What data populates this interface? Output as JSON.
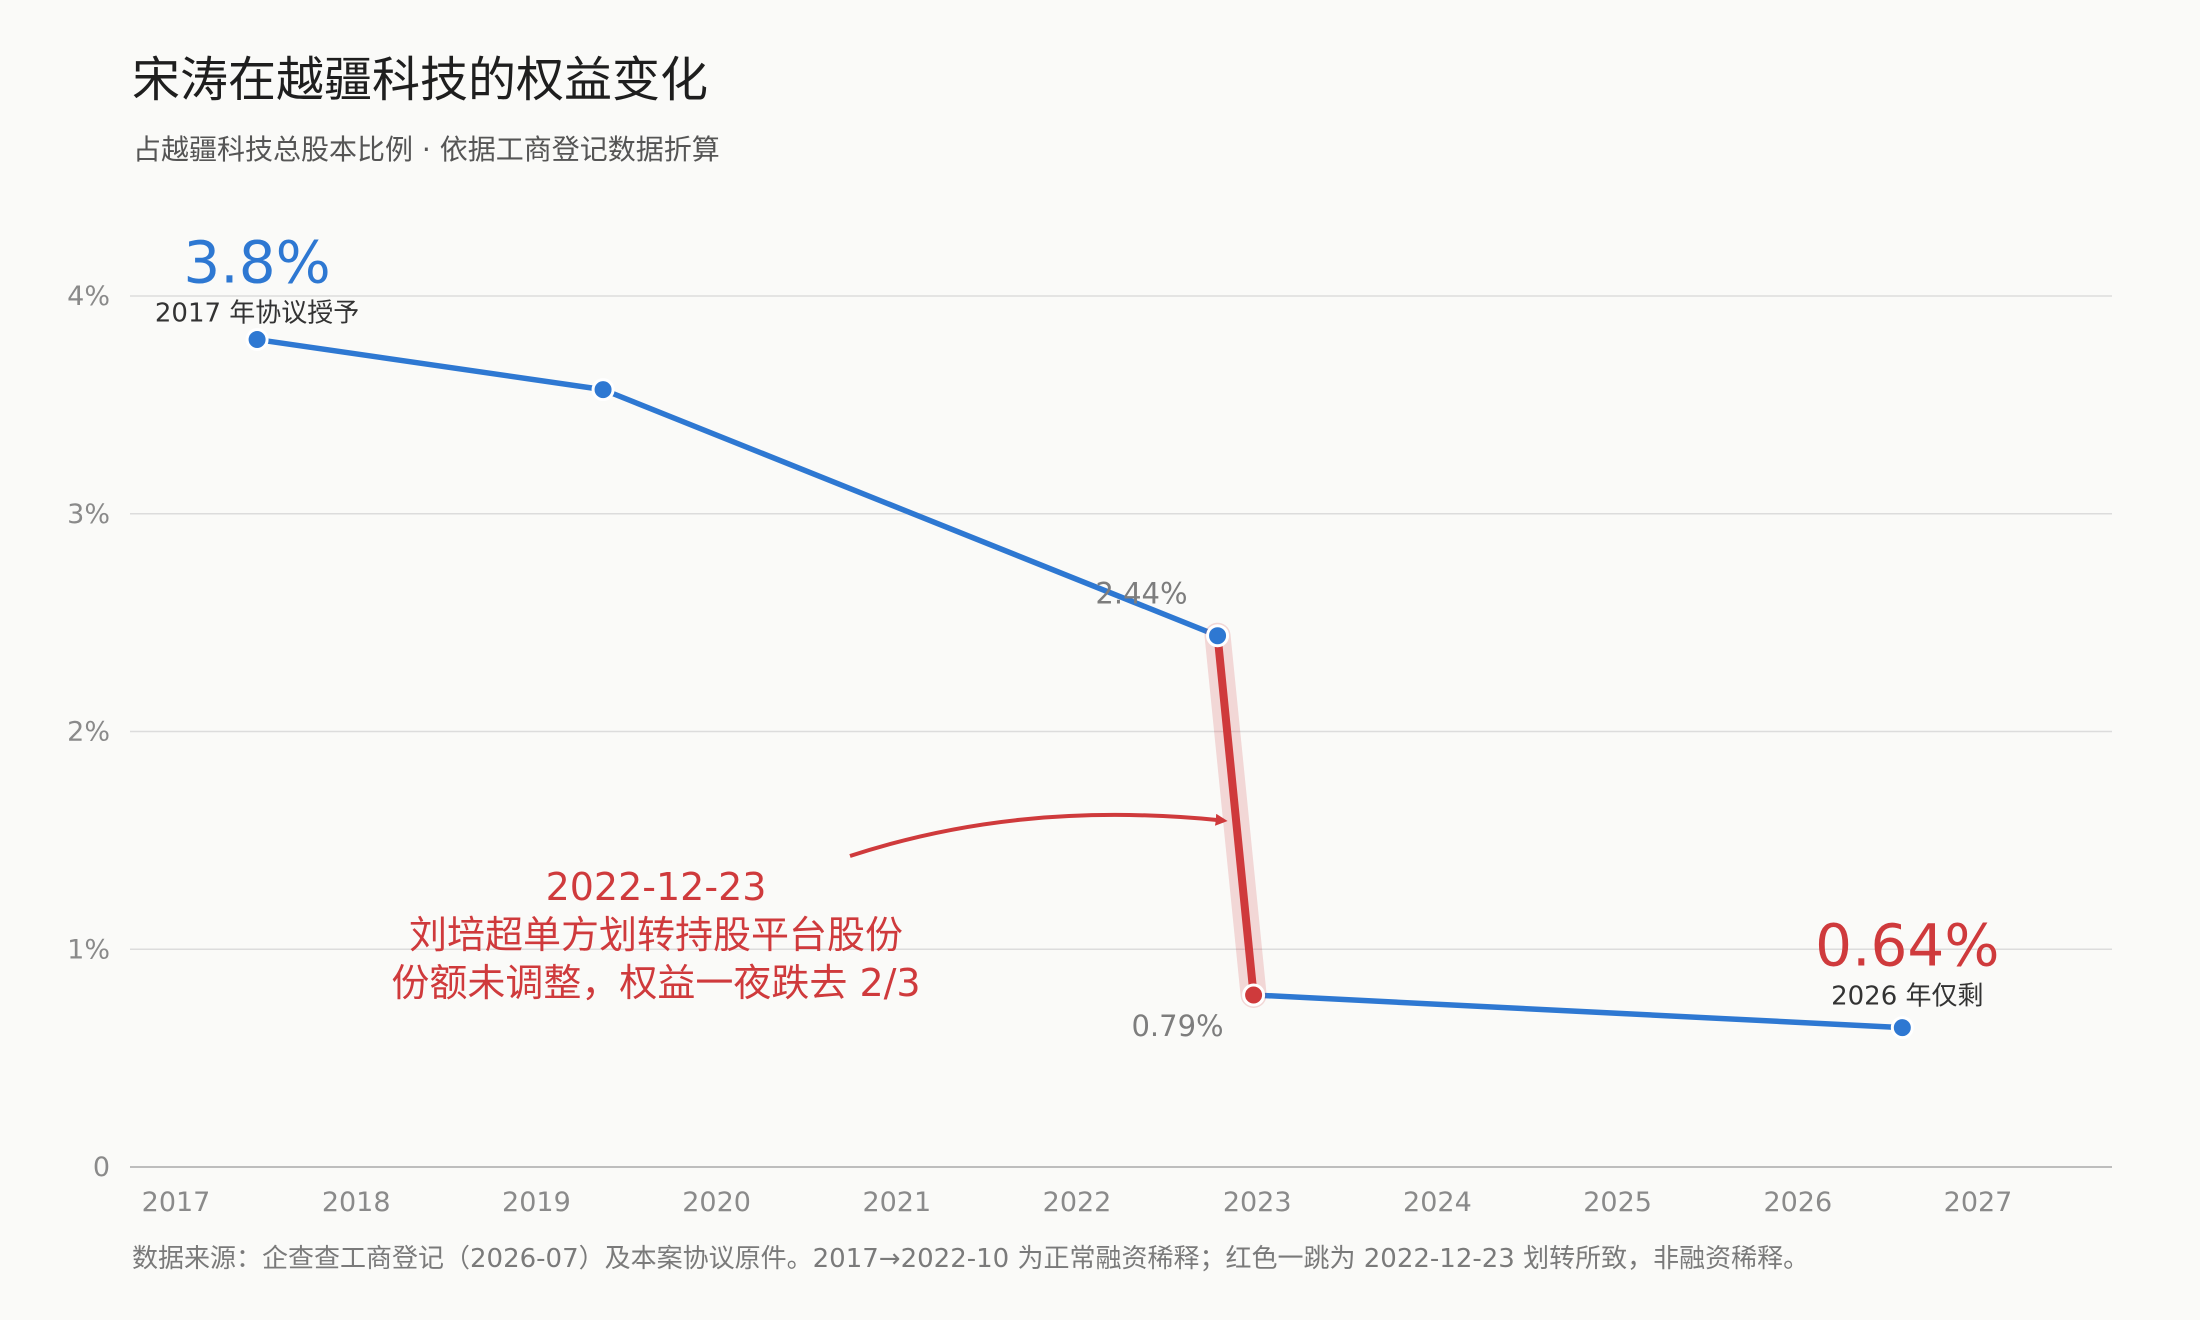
{
  "title": "宋涛在越疆科技的权益变化",
  "subtitle": "占越疆科技总股本比例 · 依据工商登记数据折算",
  "footer": "数据来源：企查查工商登记（2026-07）及本案协议原件。2017→2022-10 为正常融资稀释；红色一跳为 2022-12-23 划转所致，非融资稀释。",
  "colors": {
    "series": "#2e78d2",
    "highlight": "#cf3a3c",
    "grid": "#dcdcdc",
    "axis": "#bdbdbd"
  },
  "chart_data": {
    "type": "line",
    "title": "宋涛在越疆科技的权益变化",
    "subtitle": "占越疆科技总股本比例 · 依据工商登记数据折算",
    "xlabel": "",
    "ylabel": "",
    "x_ticks": [
      "2017",
      "2018",
      "2019",
      "2020",
      "2021",
      "2022",
      "2023",
      "2024",
      "2025",
      "2026",
      "2027"
    ],
    "xlim": [
      2017.0,
      2027.8
    ],
    "y_ticks": [
      "0",
      "1%",
      "2%",
      "3%",
      "4%"
    ],
    "ylim": [
      0,
      4
    ],
    "grid": true,
    "points": [
      {
        "x": 2017.45,
        "y": 3.8
      },
      {
        "x": 2019.37,
        "y": 3.57
      },
      {
        "x": 2022.78,
        "y": 2.44
      },
      {
        "x": 2022.98,
        "y": 0.79
      },
      {
        "x": 2026.58,
        "y": 0.64
      }
    ],
    "highlight_segment": {
      "from_index": 2,
      "to_index": 3
    },
    "point_labels": [
      {
        "point": 2,
        "text": "2.44%"
      },
      {
        "point": 3,
        "text": "0.79%"
      }
    ],
    "callouts": [
      {
        "point": 0,
        "value": "3.8%",
        "caption": "2017 年协议授予"
      },
      {
        "point": 4,
        "value": "0.64%",
        "caption": "2026 年仅剩"
      }
    ],
    "annotation": {
      "lines": [
        "2022-12-23",
        "刘培超单方划转持股平台股份",
        "份额未调整，权益一夜跌去 2/3"
      ],
      "target_point": 3
    }
  }
}
